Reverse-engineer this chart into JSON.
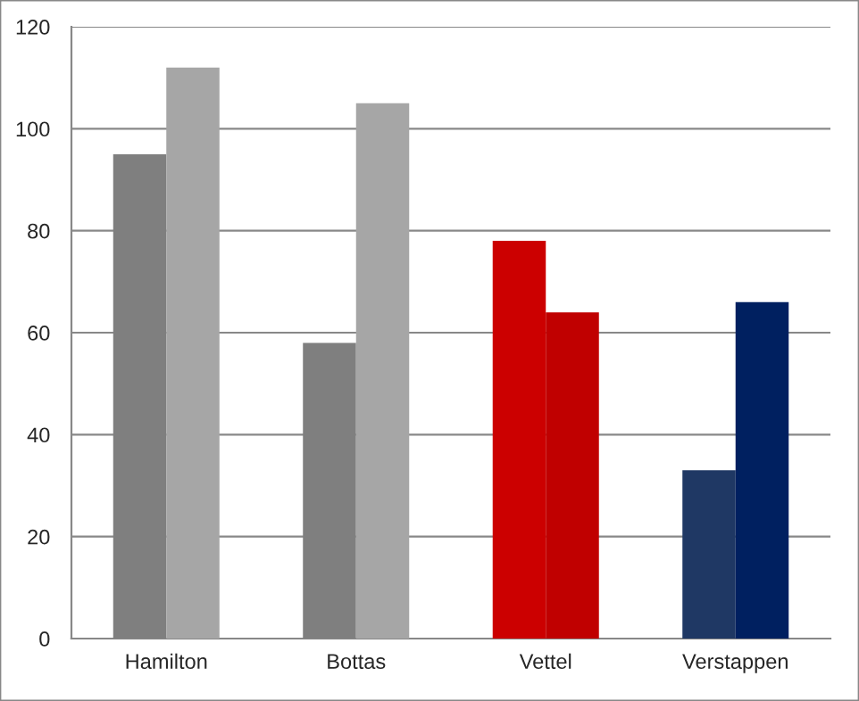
{
  "chart_data": {
    "type": "bar",
    "categories": [
      "Hamilton",
      "Bottas",
      "Vettel",
      "Verstappen"
    ],
    "series": [
      {
        "colors": [
          "#7f7f7f",
          "#7f7f7f",
          "#cc0000",
          "#1f3864"
        ],
        "values": [
          95,
          58,
          78,
          33
        ]
      },
      {
        "colors": [
          "#a6a6a6",
          "#a6a6a6",
          "#c00000",
          "#002060"
        ],
        "values": [
          112,
          105,
          64,
          66
        ]
      }
    ],
    "ylim": [
      0,
      120
    ],
    "yticks": [
      0,
      20,
      40,
      60,
      80,
      100,
      120
    ],
    "grid": "y"
  }
}
